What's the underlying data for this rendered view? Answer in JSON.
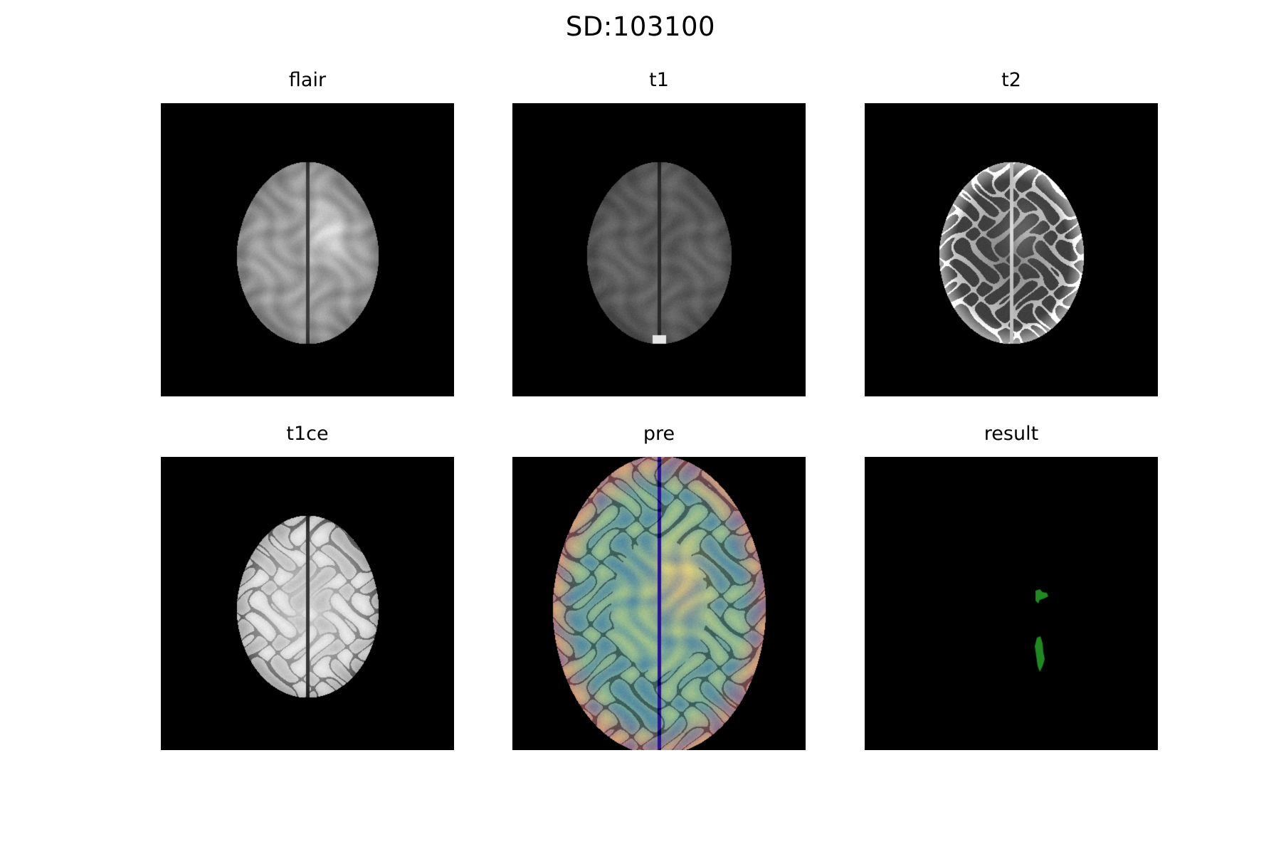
{
  "figure": {
    "title": "SD:103100"
  },
  "panels": [
    {
      "id": "flair",
      "title": "flair",
      "kind": "gray",
      "tone": "flair"
    },
    {
      "id": "t1",
      "title": "t1",
      "kind": "gray",
      "tone": "t1"
    },
    {
      "id": "t2",
      "title": "t2",
      "kind": "gray",
      "tone": "t2"
    },
    {
      "id": "t1ce",
      "title": "t1ce",
      "kind": "gray",
      "tone": "t1ce"
    },
    {
      "id": "pre",
      "title": "pre",
      "kind": "rgb",
      "tone": "pre"
    },
    {
      "id": "result",
      "title": "result",
      "kind": "mask",
      "tone": "mask"
    }
  ],
  "colors": {
    "background": "#000000",
    "mask": "#1f8a1f"
  }
}
